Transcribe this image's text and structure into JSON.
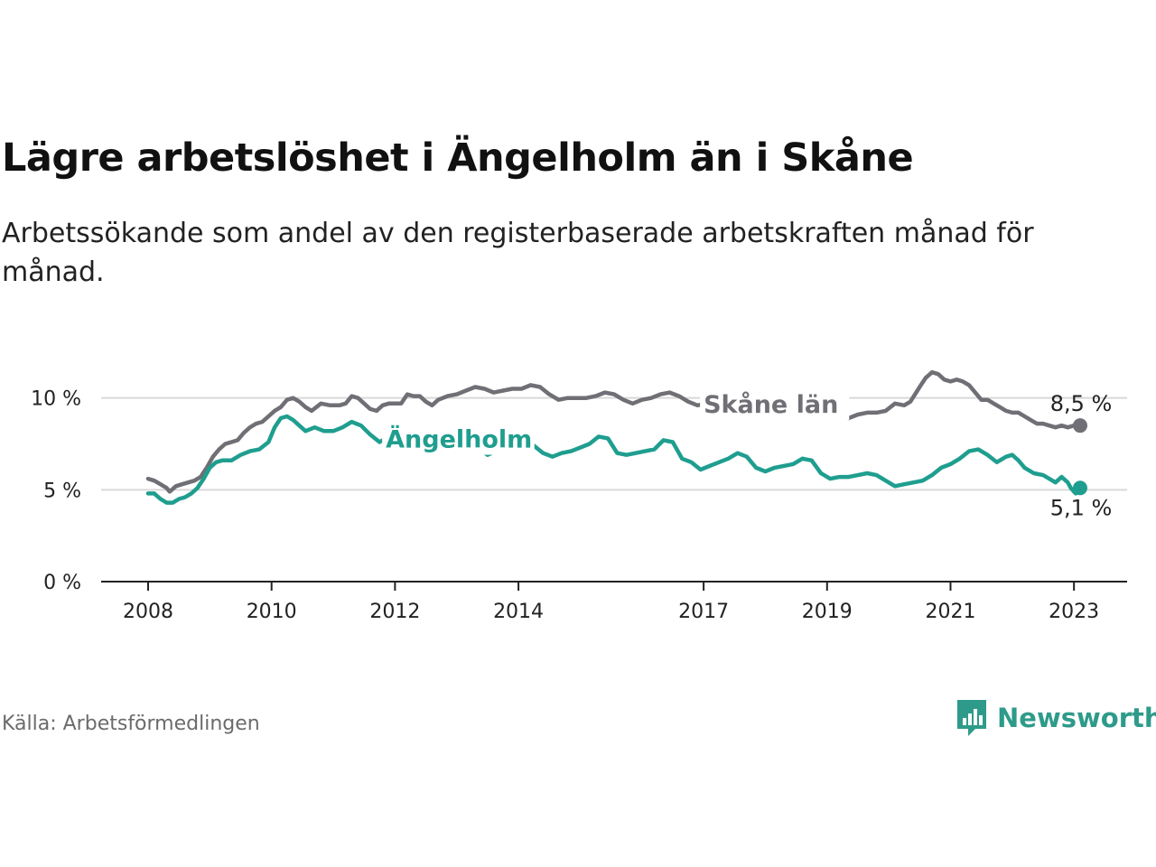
{
  "title": "Lägre arbetslöshet i Ängelholm än i Skåne",
  "subtitle": "Arbetssökande som andel av den registerbaserade arbetskraften månad för månad.",
  "source": "Källa: Arbetsförmedlingen",
  "brand": {
    "name": "Newsworthy",
    "icon": "newsworthy-logo-icon",
    "color": "#2e9b8a"
  },
  "colors": {
    "skane": "#6f6f75",
    "angelholm": "#1f9e8f",
    "grid": "#d9d9d9",
    "axis": "#222222"
  },
  "chart_data": {
    "type": "line",
    "title": "Lägre arbetslöshet i Ängelholm än i Skåne",
    "xlabel": "",
    "ylabel": "",
    "xlim": [
      2008,
      2023.1
    ],
    "ylim": [
      0,
      12
    ],
    "x_ticks": [
      2008,
      2010,
      2012,
      2014,
      2017,
      2019,
      2021,
      2023
    ],
    "y_ticks": [
      {
        "value": 0,
        "label": "0 %"
      },
      {
        "value": 5,
        "label": "5 %"
      },
      {
        "value": 10,
        "label": "10 %"
      }
    ],
    "grid": true,
    "series": [
      {
        "name": "Skåne län",
        "color": "#6f6f75",
        "end_label": "8,5 %",
        "points": [
          [
            2008.0,
            5.6
          ],
          [
            2008.1,
            5.5
          ],
          [
            2008.2,
            5.3
          ],
          [
            2008.3,
            5.1
          ],
          [
            2008.35,
            4.9
          ],
          [
            2008.45,
            5.2
          ],
          [
            2008.55,
            5.3
          ],
          [
            2008.65,
            5.4
          ],
          [
            2008.75,
            5.5
          ],
          [
            2008.85,
            5.7
          ],
          [
            2008.95,
            6.2
          ],
          [
            2009.05,
            6.8
          ],
          [
            2009.15,
            7.2
          ],
          [
            2009.25,
            7.5
          ],
          [
            2009.35,
            7.6
          ],
          [
            2009.45,
            7.7
          ],
          [
            2009.55,
            8.1
          ],
          [
            2009.65,
            8.4
          ],
          [
            2009.75,
            8.6
          ],
          [
            2009.85,
            8.7
          ],
          [
            2009.95,
            9.0
          ],
          [
            2010.05,
            9.3
          ],
          [
            2010.15,
            9.5
          ],
          [
            2010.25,
            9.9
          ],
          [
            2010.35,
            10.0
          ],
          [
            2010.45,
            9.8
          ],
          [
            2010.55,
            9.5
          ],
          [
            2010.65,
            9.3
          ],
          [
            2010.8,
            9.7
          ],
          [
            2010.95,
            9.6
          ],
          [
            2011.1,
            9.6
          ],
          [
            2011.2,
            9.7
          ],
          [
            2011.3,
            10.1
          ],
          [
            2011.4,
            10.0
          ],
          [
            2011.5,
            9.7
          ],
          [
            2011.6,
            9.4
          ],
          [
            2011.7,
            9.3
          ],
          [
            2011.8,
            9.6
          ],
          [
            2011.9,
            9.7
          ],
          [
            2012.0,
            9.7
          ],
          [
            2012.1,
            9.7
          ],
          [
            2012.2,
            10.2
          ],
          [
            2012.3,
            10.1
          ],
          [
            2012.4,
            10.1
          ],
          [
            2012.5,
            9.8
          ],
          [
            2012.6,
            9.6
          ],
          [
            2012.7,
            9.9
          ],
          [
            2012.85,
            10.1
          ],
          [
            2013.0,
            10.2
          ],
          [
            2013.15,
            10.4
          ],
          [
            2013.3,
            10.6
          ],
          [
            2013.45,
            10.5
          ],
          [
            2013.6,
            10.3
          ],
          [
            2013.75,
            10.4
          ],
          [
            2013.9,
            10.5
          ],
          [
            2014.05,
            10.5
          ],
          [
            2014.2,
            10.7
          ],
          [
            2014.35,
            10.6
          ],
          [
            2014.5,
            10.2
          ],
          [
            2014.65,
            9.9
          ],
          [
            2014.8,
            10.0
          ],
          [
            2014.95,
            10.0
          ],
          [
            2015.1,
            10.0
          ],
          [
            2015.25,
            10.1
          ],
          [
            2015.4,
            10.3
          ],
          [
            2015.55,
            10.2
          ],
          [
            2015.7,
            9.9
          ],
          [
            2015.85,
            9.7
          ],
          [
            2016.0,
            9.9
          ],
          [
            2016.15,
            10.0
          ],
          [
            2016.3,
            10.2
          ],
          [
            2016.45,
            10.3
          ],
          [
            2016.6,
            10.1
          ],
          [
            2016.75,
            9.8
          ],
          [
            2016.9,
            9.6
          ],
          [
            2017.05,
            9.7
          ],
          [
            2017.2,
            9.8
          ],
          [
            2017.35,
            9.9
          ],
          [
            2017.5,
            10.0
          ],
          [
            2017.7,
            9.9
          ],
          [
            2017.9,
            9.7
          ],
          [
            2018.1,
            9.5
          ],
          [
            2018.3,
            9.3
          ],
          [
            2018.5,
            9.2
          ],
          [
            2018.7,
            9.3
          ],
          [
            2018.9,
            9.2
          ],
          [
            2019.1,
            9.3
          ],
          [
            2019.25,
            9.1
          ],
          [
            2019.35,
            8.9
          ],
          [
            2019.5,
            9.1
          ],
          [
            2019.65,
            9.2
          ],
          [
            2019.8,
            9.2
          ],
          [
            2019.95,
            9.3
          ],
          [
            2020.1,
            9.7
          ],
          [
            2020.25,
            9.6
          ],
          [
            2020.35,
            9.8
          ],
          [
            2020.5,
            10.6
          ],
          [
            2020.6,
            11.1
          ],
          [
            2020.7,
            11.4
          ],
          [
            2020.8,
            11.3
          ],
          [
            2020.9,
            11.0
          ],
          [
            2021.0,
            10.9
          ],
          [
            2021.1,
            11.0
          ],
          [
            2021.2,
            10.9
          ],
          [
            2021.3,
            10.7
          ],
          [
            2021.4,
            10.3
          ],
          [
            2021.5,
            9.9
          ],
          [
            2021.6,
            9.9
          ],
          [
            2021.7,
            9.7
          ],
          [
            2021.8,
            9.5
          ],
          [
            2021.9,
            9.3
          ],
          [
            2022.0,
            9.2
          ],
          [
            2022.1,
            9.2
          ],
          [
            2022.2,
            9.0
          ],
          [
            2022.3,
            8.8
          ],
          [
            2022.4,
            8.6
          ],
          [
            2022.5,
            8.6
          ],
          [
            2022.6,
            8.5
          ],
          [
            2022.7,
            8.4
          ],
          [
            2022.8,
            8.5
          ],
          [
            2022.9,
            8.4
          ],
          [
            2023.0,
            8.5
          ],
          [
            2023.1,
            8.5
          ]
        ]
      },
      {
        "name": "Ängelholm",
        "color": "#1f9e8f",
        "end_label": "5,1 %",
        "points": [
          [
            2008.0,
            4.8
          ],
          [
            2008.1,
            4.8
          ],
          [
            2008.2,
            4.5
          ],
          [
            2008.3,
            4.3
          ],
          [
            2008.4,
            4.3
          ],
          [
            2008.5,
            4.5
          ],
          [
            2008.6,
            4.6
          ],
          [
            2008.7,
            4.8
          ],
          [
            2008.8,
            5.1
          ],
          [
            2008.9,
            5.6
          ],
          [
            2009.0,
            6.2
          ],
          [
            2009.1,
            6.5
          ],
          [
            2009.2,
            6.6
          ],
          [
            2009.35,
            6.6
          ],
          [
            2009.5,
            6.9
          ],
          [
            2009.65,
            7.1
          ],
          [
            2009.8,
            7.2
          ],
          [
            2009.95,
            7.6
          ],
          [
            2010.05,
            8.4
          ],
          [
            2010.15,
            8.9
          ],
          [
            2010.25,
            9.0
          ],
          [
            2010.35,
            8.8
          ],
          [
            2010.45,
            8.5
          ],
          [
            2010.55,
            8.2
          ],
          [
            2010.7,
            8.4
          ],
          [
            2010.85,
            8.2
          ],
          [
            2011.0,
            8.2
          ],
          [
            2011.15,
            8.4
          ],
          [
            2011.3,
            8.7
          ],
          [
            2011.45,
            8.5
          ],
          [
            2011.6,
            8.0
          ],
          [
            2011.75,
            7.6
          ],
          [
            2011.9,
            7.9
          ],
          [
            2012.05,
            7.9
          ],
          [
            2012.2,
            8.1
          ],
          [
            2012.35,
            8.1
          ],
          [
            2012.5,
            7.9
          ],
          [
            2012.7,
            7.8
          ],
          [
            2012.9,
            7.6
          ],
          [
            2013.1,
            7.5
          ],
          [
            2013.3,
            7.4
          ],
          [
            2013.5,
            6.9
          ],
          [
            2013.7,
            7.2
          ],
          [
            2013.9,
            7.4
          ],
          [
            2014.1,
            7.5
          ],
          [
            2014.25,
            7.4
          ],
          [
            2014.4,
            7.0
          ],
          [
            2014.55,
            6.8
          ],
          [
            2014.7,
            7.0
          ],
          [
            2014.85,
            7.1
          ],
          [
            2015.0,
            7.3
          ],
          [
            2015.15,
            7.5
          ],
          [
            2015.3,
            7.9
          ],
          [
            2015.45,
            7.8
          ],
          [
            2015.6,
            7.0
          ],
          [
            2015.75,
            6.9
          ],
          [
            2015.9,
            7.0
          ],
          [
            2016.05,
            7.1
          ],
          [
            2016.2,
            7.2
          ],
          [
            2016.35,
            7.7
          ],
          [
            2016.5,
            7.6
          ],
          [
            2016.65,
            6.7
          ],
          [
            2016.8,
            6.5
          ],
          [
            2016.95,
            6.1
          ],
          [
            2017.1,
            6.3
          ],
          [
            2017.25,
            6.5
          ],
          [
            2017.4,
            6.7
          ],
          [
            2017.55,
            7.0
          ],
          [
            2017.7,
            6.8
          ],
          [
            2017.85,
            6.2
          ],
          [
            2018.0,
            6.0
          ],
          [
            2018.15,
            6.2
          ],
          [
            2018.3,
            6.3
          ],
          [
            2018.45,
            6.4
          ],
          [
            2018.6,
            6.7
          ],
          [
            2018.75,
            6.6
          ],
          [
            2018.9,
            5.9
          ],
          [
            2019.05,
            5.6
          ],
          [
            2019.2,
            5.7
          ],
          [
            2019.35,
            5.7
          ],
          [
            2019.5,
            5.8
          ],
          [
            2019.65,
            5.9
          ],
          [
            2019.8,
            5.8
          ],
          [
            2019.95,
            5.5
          ],
          [
            2020.1,
            5.2
          ],
          [
            2020.25,
            5.3
          ],
          [
            2020.4,
            5.4
          ],
          [
            2020.55,
            5.5
          ],
          [
            2020.7,
            5.8
          ],
          [
            2020.85,
            6.2
          ],
          [
            2021.0,
            6.4
          ],
          [
            2021.15,
            6.7
          ],
          [
            2021.3,
            7.1
          ],
          [
            2021.45,
            7.2
          ],
          [
            2021.6,
            6.9
          ],
          [
            2021.75,
            6.5
          ],
          [
            2021.9,
            6.8
          ],
          [
            2022.0,
            6.9
          ],
          [
            2022.1,
            6.6
          ],
          [
            2022.2,
            6.2
          ],
          [
            2022.35,
            5.9
          ],
          [
            2022.5,
            5.8
          ],
          [
            2022.6,
            5.6
          ],
          [
            2022.7,
            5.4
          ],
          [
            2022.8,
            5.7
          ],
          [
            2022.9,
            5.4
          ],
          [
            2022.95,
            5.1
          ],
          [
            2023.0,
            4.9
          ],
          [
            2023.03,
            4.8
          ],
          [
            2023.06,
            5.0
          ],
          [
            2023.08,
            4.9
          ],
          [
            2023.1,
            5.1
          ]
        ]
      }
    ]
  }
}
